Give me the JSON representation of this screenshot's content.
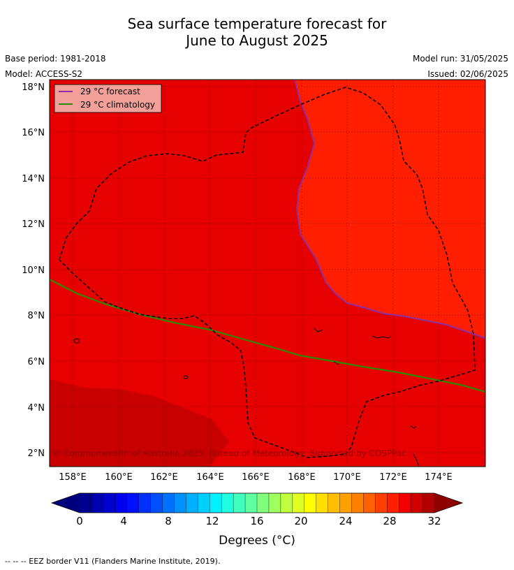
{
  "title_line1": "Sea surface temperature forecast for",
  "title_line2": "June to August 2025",
  "base_period": "Base period: 1981-2018",
  "model": "Model: ACCESS-S2",
  "model_run": "Model run: 31/05/2025",
  "issued": "Issued: 02/06/2025",
  "legend": {
    "forecast": "29 °C  forecast",
    "climatology": "29 °C  climatology",
    "forecast_color": "#8b2fa3",
    "climatology_color": "#2e8b00"
  },
  "lat_ticks": [
    "2°N",
    "4°N",
    "6°N",
    "8°N",
    "10°N",
    "12°N",
    "14°N",
    "16°N",
    "18°N"
  ],
  "lon_ticks": [
    "158°E",
    "160°E",
    "162°E",
    "164°E",
    "166°E",
    "168°E",
    "170°E",
    "172°E",
    "174°E"
  ],
  "copyright": "© Commonwealth of Australia 2025, Bureau of Meteorology, Supported by COSPPac",
  "colorbar": {
    "ticks": [
      "0",
      "4",
      "8",
      "12",
      "16",
      "20",
      "24",
      "28",
      "32"
    ],
    "label": "Degrees (°C)",
    "colors": [
      "#00008f",
      "#0000af",
      "#0000cf",
      "#0000ef",
      "#0010ff",
      "#0030ff",
      "#0050ff",
      "#0070ff",
      "#0090ff",
      "#00b0ff",
      "#00d0ff",
      "#00f0ff",
      "#20ffdf",
      "#40ffbf",
      "#60ff9f",
      "#80ff7f",
      "#9fff60",
      "#bfff40",
      "#dfff20",
      "#ffff00",
      "#ffdf00",
      "#ffbf00",
      "#ff9f00",
      "#ff8000",
      "#ff6000",
      "#ff4000",
      "#ff2000",
      "#f00000",
      "#d00000",
      "#b00000"
    ],
    "under_color": "#00007f",
    "over_color": "#8f0000"
  },
  "map_colors": {
    "c30": "#e60000",
    "c31": "#ff1e00",
    "c29": "#c80000"
  },
  "footer": "--  --  -- EEZ border V11 (Flanders Marine Institute, 2019)."
}
